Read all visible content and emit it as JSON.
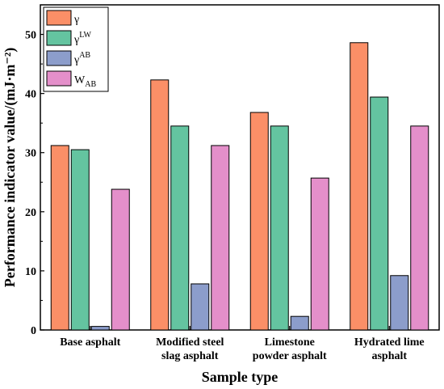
{
  "chart_data": {
    "type": "bar",
    "title": "",
    "xlabel": "Sample type",
    "ylabel": "Performance indicator value/(mJ·m⁻²)",
    "ylim": [
      0,
      55
    ],
    "yticks": [
      0,
      10,
      20,
      30,
      40,
      50
    ],
    "grid": false,
    "legend_position": "top-left",
    "categories": [
      [
        "Base asphalt"
      ],
      [
        "Modified steel",
        "slag asphalt"
      ],
      [
        "Limestone",
        "powder asphalt"
      ],
      [
        "Hydrated lime",
        "asphalt"
      ]
    ],
    "series": [
      {
        "name": "γ",
        "base": "γ",
        "sup": "",
        "sub": "",
        "color": "#fb8f67",
        "values": [
          31.2,
          42.3,
          36.8,
          48.6
        ]
      },
      {
        "name": "γLW",
        "base": "γ",
        "sup": "LW",
        "sub": "",
        "color": "#64c4a0",
        "values": [
          30.5,
          34.5,
          34.5,
          39.4
        ]
      },
      {
        "name": "γAB",
        "base": "γ",
        "sup": "AB",
        "sub": "",
        "color": "#8c9dcb",
        "values": [
          0.6,
          7.8,
          2.3,
          9.2
        ]
      },
      {
        "name": "WAB",
        "base": "W",
        "sup": "",
        "sub": "AB",
        "color": "#e48fca",
        "values": [
          23.8,
          31.2,
          25.7,
          34.5
        ]
      }
    ]
  }
}
